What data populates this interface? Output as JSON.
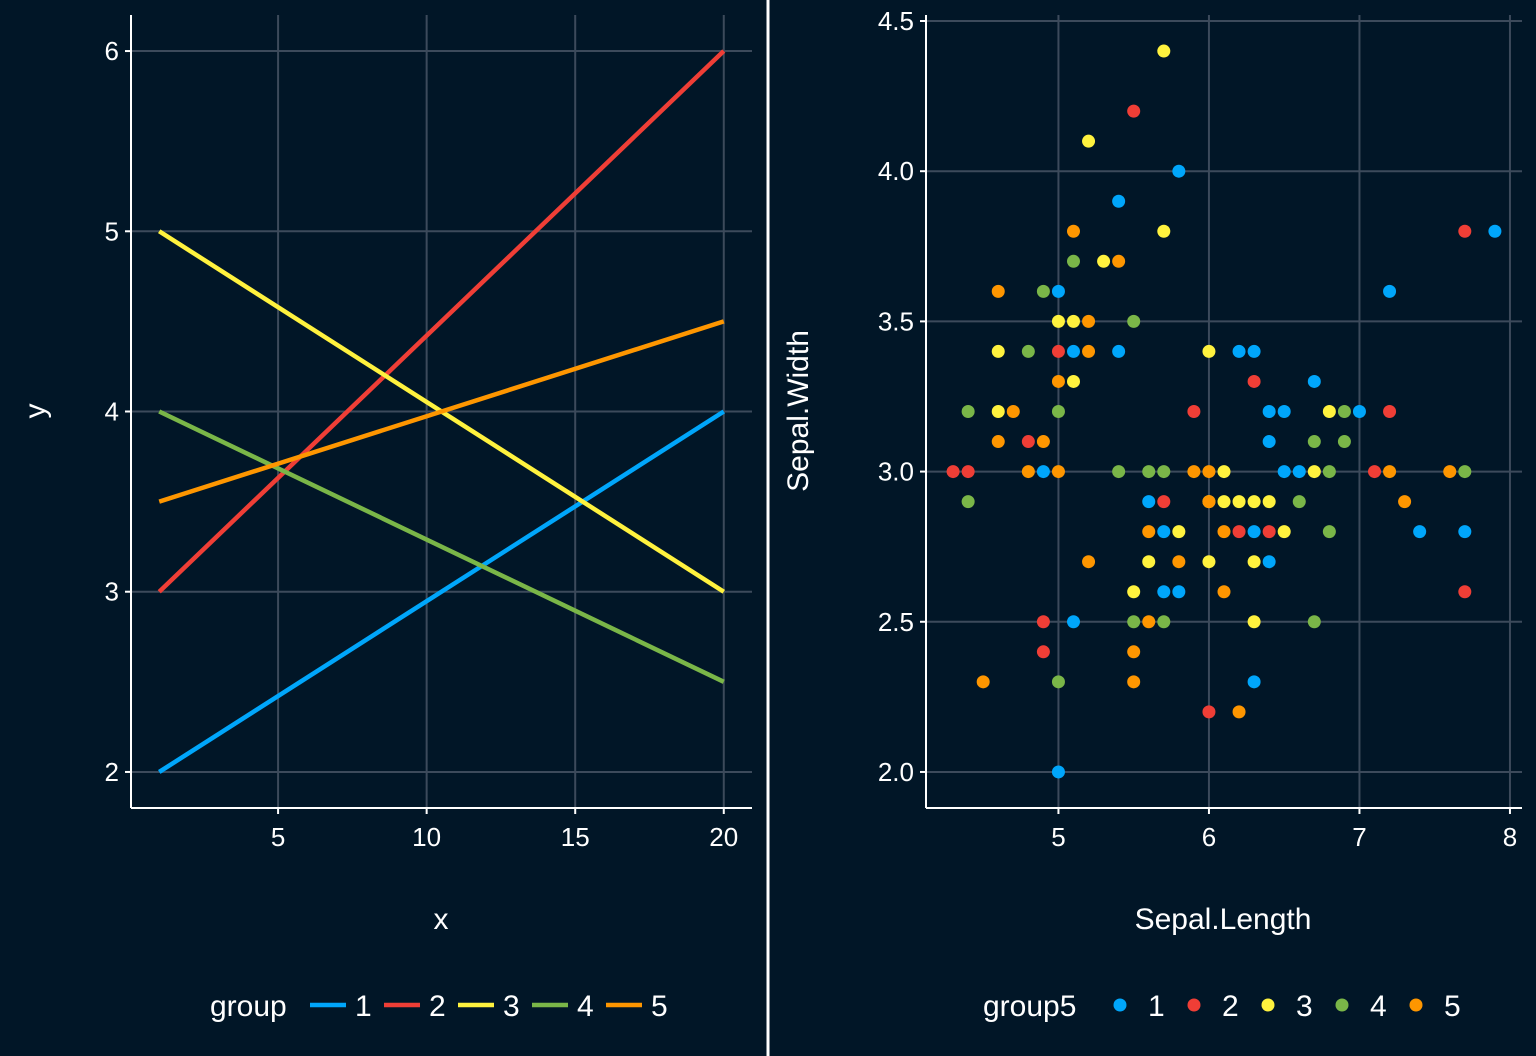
{
  "colors": {
    "background": "#011627",
    "grid": "#3c4a5b",
    "axis": "#ffffff",
    "text": "#ffffff",
    "palette": [
      "#00a6fb",
      "#ef3e36",
      "#fff23e",
      "#7ab648",
      "#fe9600"
    ]
  },
  "chart_data": [
    {
      "type": "line",
      "xlabel": "x",
      "ylabel": "y",
      "xlim": [
        0.05,
        20.95
      ],
      "ylim": [
        1.8,
        6.2
      ],
      "xticks": [
        5,
        10,
        15,
        20
      ],
      "yticks": [
        2,
        3,
        4,
        5,
        6
      ],
      "grid": true,
      "legend": {
        "title": "group",
        "position": "bottom",
        "labels": [
          "1",
          "2",
          "3",
          "4",
          "5"
        ]
      },
      "series": [
        {
          "name": "1",
          "x": [
            1,
            20
          ],
          "y": [
            2,
            4
          ]
        },
        {
          "name": "2",
          "x": [
            1,
            20
          ],
          "y": [
            3,
            6
          ]
        },
        {
          "name": "3",
          "x": [
            1,
            20
          ],
          "y": [
            5,
            3
          ]
        },
        {
          "name": "4",
          "x": [
            1,
            20
          ],
          "y": [
            4,
            2.5
          ]
        },
        {
          "name": "5",
          "x": [
            1,
            20
          ],
          "y": [
            3.5,
            4.5
          ]
        }
      ]
    },
    {
      "type": "scatter",
      "xlabel": "Sepal.Length",
      "ylabel": "Sepal.Width",
      "xlim": [
        4.12,
        8.08
      ],
      "ylim": [
        1.88,
        4.52
      ],
      "xticks": [
        5,
        6,
        7,
        8
      ],
      "yticks": [
        2.0,
        2.5,
        3.0,
        3.5,
        4.0,
        4.5
      ],
      "ytick_labels": [
        "2.0",
        "2.5",
        "3.0",
        "3.5",
        "4.0",
        "4.5"
      ],
      "grid": true,
      "legend": {
        "title": "group5",
        "position": "bottom",
        "labels": [
          "1",
          "2",
          "3",
          "4",
          "5"
        ]
      },
      "series": [
        {
          "name": "1",
          "points": [
            [
              5.0,
              3.6
            ],
            [
              5.1,
              3.4
            ],
            [
              5.4,
              3.9
            ],
            [
              5.8,
              4.0
            ],
            [
              5.4,
              3.4
            ],
            [
              5.0,
              2.0
            ],
            [
              5.1,
              2.5
            ],
            [
              4.9,
              3.0
            ],
            [
              5.6,
              2.9
            ],
            [
              5.7,
              2.8
            ],
            [
              5.8,
              2.6
            ],
            [
              5.7,
              2.6
            ],
            [
              6.2,
              3.4
            ],
            [
              6.3,
              3.4
            ],
            [
              6.4,
              3.2
            ],
            [
              6.5,
              3.2
            ],
            [
              6.4,
              3.1
            ],
            [
              6.5,
              3.0
            ],
            [
              6.6,
              3.0
            ],
            [
              6.7,
              3.3
            ],
            [
              7.0,
              3.2
            ],
            [
              6.3,
              2.8
            ],
            [
              6.4,
              2.7
            ],
            [
              6.3,
              2.3
            ],
            [
              7.2,
              3.6
            ],
            [
              7.4,
              2.8
            ],
            [
              7.7,
              2.8
            ],
            [
              7.9,
              3.8
            ]
          ]
        },
        {
          "name": "2",
          "points": [
            [
              4.3,
              3.0
            ],
            [
              4.4,
              3.0
            ],
            [
              5.5,
              4.2
            ],
            [
              5.0,
              3.4
            ],
            [
              4.8,
              3.1
            ],
            [
              5.7,
              2.9
            ],
            [
              5.9,
              3.2
            ],
            [
              6.3,
              3.3
            ],
            [
              6.2,
              2.8
            ],
            [
              6.4,
              2.8
            ],
            [
              4.9,
              2.5
            ],
            [
              4.9,
              2.4
            ],
            [
              6.0,
              2.2
            ],
            [
              7.1,
              3.0
            ],
            [
              7.2,
              3.2
            ],
            [
              7.7,
              3.8
            ],
            [
              7.7,
              2.6
            ]
          ]
        },
        {
          "name": "3",
          "points": [
            [
              5.7,
              4.4
            ],
            [
              5.2,
              4.1
            ],
            [
              5.7,
              3.8
            ],
            [
              5.3,
              3.7
            ],
            [
              5.0,
              3.5
            ],
            [
              5.1,
              3.5
            ],
            [
              4.6,
              3.4
            ],
            [
              5.1,
              3.3
            ],
            [
              4.6,
              3.2
            ],
            [
              6.0,
              3.4
            ],
            [
              6.1,
              3.0
            ],
            [
              6.0,
              2.9
            ],
            [
              6.1,
              2.9
            ],
            [
              6.2,
              2.9
            ],
            [
              6.3,
              2.9
            ],
            [
              6.4,
              2.9
            ],
            [
              6.5,
              2.8
            ],
            [
              6.8,
              3.2
            ],
            [
              6.7,
              3.0
            ],
            [
              5.8,
              2.8
            ],
            [
              5.6,
              2.7
            ],
            [
              6.0,
              2.7
            ],
            [
              6.3,
              2.7
            ],
            [
              5.5,
              2.6
            ],
            [
              6.3,
              2.5
            ]
          ]
        },
        {
          "name": "4",
          "points": [
            [
              5.1,
              3.7
            ],
            [
              4.8,
              3.4
            ],
            [
              4.9,
              3.6
            ],
            [
              5.5,
              3.5
            ],
            [
              4.4,
              3.2
            ],
            [
              5.0,
              3.2
            ],
            [
              4.4,
              2.9
            ],
            [
              5.4,
              3.0
            ],
            [
              5.6,
              3.0
            ],
            [
              5.7,
              3.0
            ],
            [
              6.7,
              3.1
            ],
            [
              6.9,
              3.1
            ],
            [
              6.9,
              3.2
            ],
            [
              6.8,
              3.0
            ],
            [
              6.6,
              2.9
            ],
            [
              6.8,
              2.8
            ],
            [
              5.5,
              2.5
            ],
            [
              5.7,
              2.5
            ],
            [
              5.0,
              2.3
            ],
            [
              6.7,
              2.5
            ],
            [
              7.7,
              3.0
            ]
          ]
        },
        {
          "name": "5",
          "points": [
            [
              4.6,
              3.6
            ],
            [
              5.1,
              3.8
            ],
            [
              5.4,
              3.7
            ],
            [
              5.2,
              3.5
            ],
            [
              5.2,
              3.4
            ],
            [
              5.0,
              3.3
            ],
            [
              4.6,
              3.1
            ],
            [
              4.7,
              3.2
            ],
            [
              4.9,
              3.1
            ],
            [
              4.8,
              3.0
            ],
            [
              5.0,
              3.0
            ],
            [
              5.9,
              3.0
            ],
            [
              6.0,
              3.0
            ],
            [
              6.0,
              2.9
            ],
            [
              5.6,
              2.8
            ],
            [
              6.1,
              2.8
            ],
            [
              5.2,
              2.7
            ],
            [
              5.8,
              2.7
            ],
            [
              6.1,
              2.6
            ],
            [
              5.5,
              2.4
            ],
            [
              5.5,
              2.3
            ],
            [
              4.5,
              2.3
            ],
            [
              6.2,
              2.2
            ],
            [
              5.6,
              2.5
            ],
            [
              7.2,
              3.0
            ],
            [
              7.3,
              2.9
            ],
            [
              7.6,
              3.0
            ]
          ]
        }
      ]
    }
  ]
}
